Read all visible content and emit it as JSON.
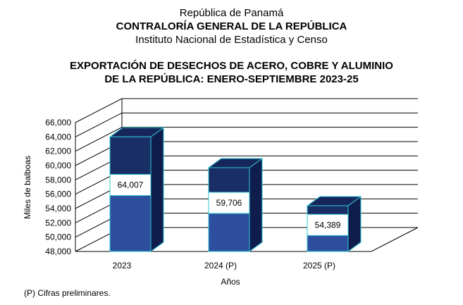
{
  "header": {
    "line1": "República de Panamá",
    "line2": "CONTRALORÍA GENERAL DE LA REPÚBLICA",
    "line3": "Instituto Nacional de Estadística y Censo"
  },
  "footnote": "(P) Cifras preliminares.",
  "chart_data": {
    "type": "bar",
    "title": "EXPORTACIÓN DE DESECHOS DE ACERO, COBRE Y ALUMINIO DE LA REPÚBLICA: ENERO-SEPTIEMBRE 2023-25",
    "title_lines": [
      "EXPORTACIÓN DE DESECHOS DE ACERO, COBRE Y ALUMINIO",
      "DE LA REPÚBLICA: ENERO-SEPTIEMBRE 2023-25"
    ],
    "xlabel": "Años",
    "ylabel": "Miles de balboas",
    "categories": [
      "2023",
      "2024 (P)",
      "2025 (P)"
    ],
    "values": [
      64007,
      59706,
      54389
    ],
    "data_labels": [
      "64,007",
      "59,706",
      "54,389"
    ],
    "ylim": [
      48000,
      66000
    ],
    "ytick_step": 2000,
    "ytick_labels": [
      "48,000",
      "50,000",
      "52,000",
      "54,000",
      "56,000",
      "58,000",
      "60,000",
      "62,000",
      "64,000",
      "66,000"
    ],
    "grid": true,
    "legend": "none",
    "three_d": true,
    "colors": {
      "bar_front_bottom": "#2d4f9e",
      "bar_front_top": "#1a2e66",
      "bar_top": "#16265a",
      "bar_side": "#0f1d4d",
      "bar_edge": "#2fc8d6",
      "grid": "#000000"
    }
  }
}
